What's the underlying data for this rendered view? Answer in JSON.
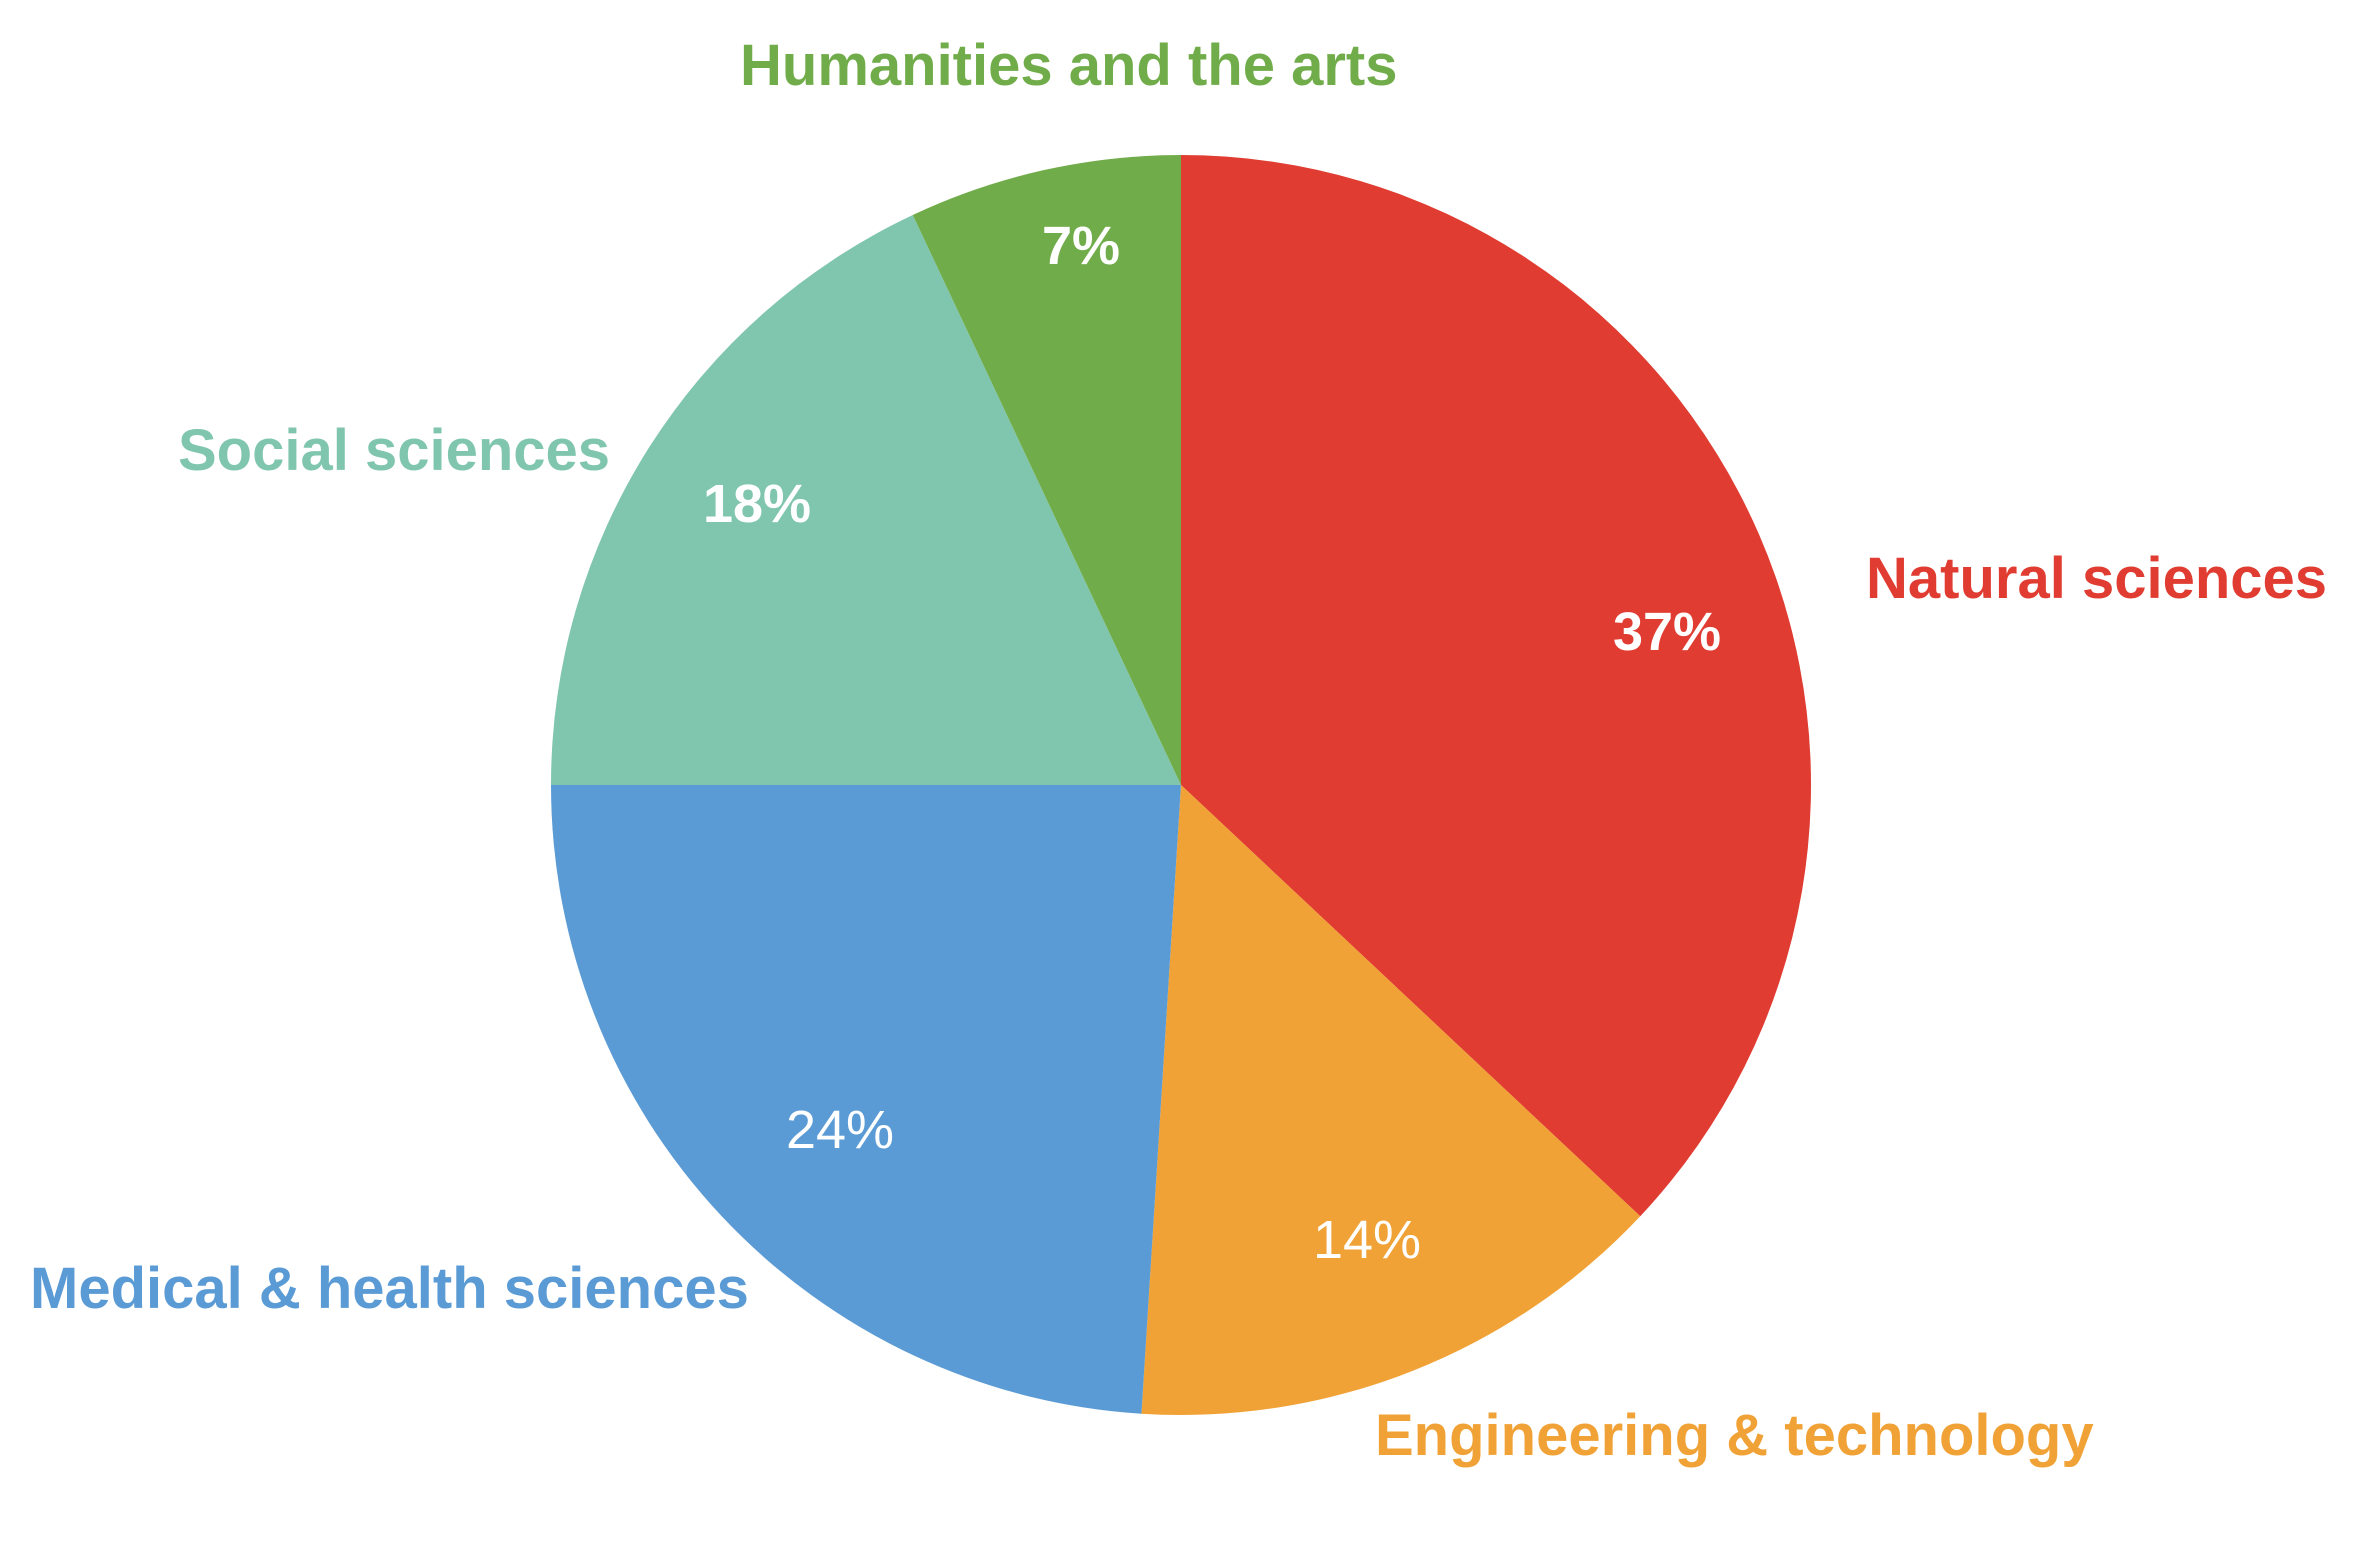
{
  "chart_data": {
    "type": "pie",
    "title": "",
    "slices": [
      {
        "label": "Natural sciences",
        "value": 37,
        "value_label": "37%",
        "color": "#e03c31",
        "value_label_bold": true
      },
      {
        "label": "Engineering & technology",
        "value": 14,
        "value_label": "14%",
        "color": "#f0a236",
        "value_label_bold": false
      },
      {
        "label": "Medical & health sciences",
        "value": 24,
        "value_label": "24%",
        "color": "#5b9bd5",
        "value_label_bold": false
      },
      {
        "label": "Social sciences",
        "value": 18,
        "value_label": "18%",
        "color": "#80c6ae",
        "value_label_bold": true
      },
      {
        "label": "Humanities and the arts",
        "value": 7,
        "value_label": "7%",
        "color": "#71ac4a",
        "value_label_bold": true
      }
    ],
    "start": "12 o'clock",
    "direction": "clockwise",
    "legend": "none"
  }
}
